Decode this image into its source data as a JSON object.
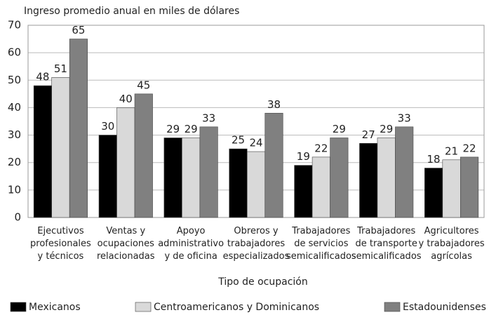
{
  "chart_data": {
    "type": "bar",
    "title": "Ingreso promedio anual en miles de dólares",
    "x_label": "Tipo de ocupación",
    "categories": [
      "Ejecutivos\nprofesionales\ny técnicos",
      "Ventas y\nocupaciones\nrelacionadas",
      "Apoyo\nadministrativo\ny de oficina",
      "Obreros y\ntrabajadores\nespecializados",
      "Trabajadores\nde servicios\nsemicalificados",
      "Trabajadores\nde transporte\nsemicalificados",
      "Agricultores\ny trabajadores\nagrícolas"
    ],
    "series": [
      {
        "name": "Mexicanos",
        "color": "#000000",
        "values": [
          48,
          30,
          29,
          25,
          19,
          27,
          18
        ]
      },
      {
        "name": "Centroamericanos y Dominicanos",
        "color": "#d9d9d9",
        "values": [
          51,
          40,
          29,
          24,
          22,
          29,
          21
        ]
      },
      {
        "name": "Estadounidenses",
        "color": "#808080",
        "values": [
          65,
          45,
          33,
          38,
          29,
          33,
          22
        ]
      }
    ],
    "ylim": [
      0,
      70
    ],
    "yticks": [
      0,
      10,
      20,
      30,
      40,
      50,
      60,
      70
    ],
    "grid": true
  }
}
